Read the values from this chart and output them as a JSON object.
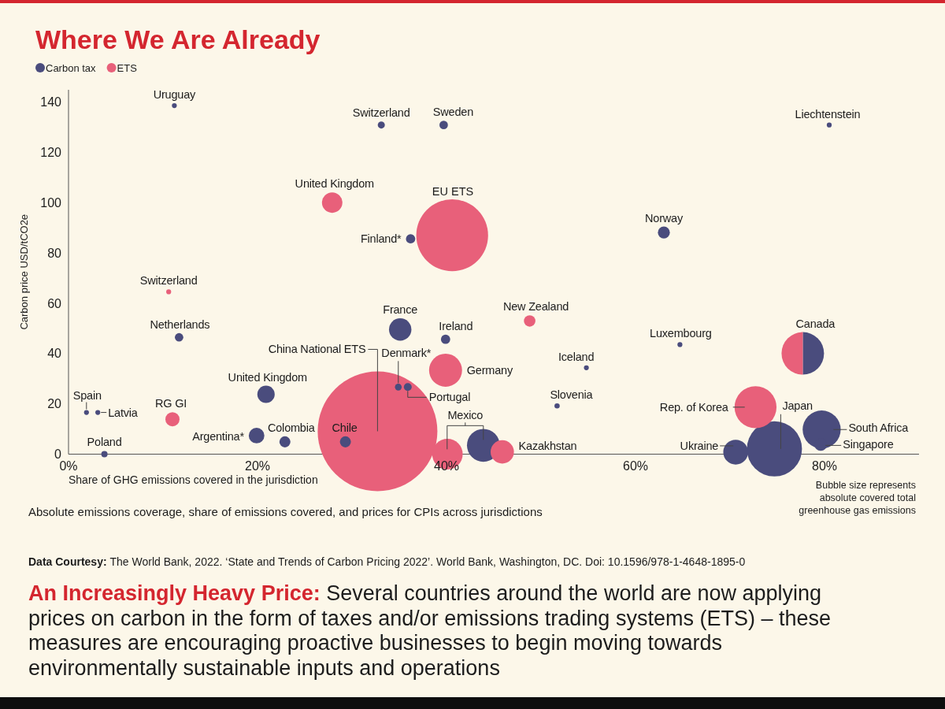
{
  "chart_data": {
    "type": "bubble",
    "title": "Where We Are Already",
    "xlabel": "Share of GHG emissions covered in the jurisdiction",
    "ylabel": "Carbon price USD/tCO2e",
    "legend": "top left",
    "xlim": [
      0,
      90
    ],
    "xticks": [
      {
        "value": 0,
        "label": "0%"
      },
      {
        "value": 20,
        "label": "20%"
      },
      {
        "value": 40,
        "label": "40%"
      },
      {
        "value": 60,
        "label": "60%"
      },
      {
        "value": 80,
        "label": "80%"
      }
    ],
    "ylim": [
      0,
      145
    ],
    "yticks": [
      0,
      20,
      40,
      60,
      80,
      100,
      120,
      140
    ],
    "series": [
      {
        "name": "Carbon tax",
        "color": "#4a4c7d",
        "x": [
          11.2,
          33.1,
          39.7,
          80.5,
          36.2,
          63,
          11.7,
          35.1,
          39.9,
          64.7,
          54.8,
          77.7,
          34.9,
          35.9,
          20.9,
          51.7,
          1.9,
          3.1,
          19.9,
          22.9,
          29.3,
          43.9,
          3.8,
          74.7,
          70.6,
          79.7,
          79.6
        ],
        "values": [
          138.7,
          131,
          131,
          131,
          85.7,
          88.2,
          46.5,
          49.6,
          45.7,
          43.6,
          34.4,
          40.1,
          26.7,
          26.7,
          23.8,
          19.2,
          16.6,
          16.6,
          7.4,
          4.9,
          4.9,
          3.5,
          0,
          2.1,
          0.8,
          9.8,
          3.8
        ],
        "sizes": [
          0.0017,
          0.0035,
          0.005,
          0.0017,
          0.006,
          0.01,
          0.005,
          0.035,
          0.006,
          0.0017,
          0.0017,
          0.126,
          0.0032,
          0.0043,
          0.021,
          0.0019,
          0.0017,
          0.0017,
          0.017,
          0.0085,
          0.0085,
          0.075,
          0.0028,
          0.212,
          0.043,
          0.101,
          0.011
        ]
      },
      {
        "name": "ETS",
        "color": "#e8607a",
        "x": [
          27.9,
          40.6,
          10.6,
          48.8,
          77.7,
          39.9,
          32.7,
          11,
          72.7,
          40.1,
          45.9
        ],
        "values": [
          100.1,
          87.1,
          64.6,
          53,
          40.1,
          33.4,
          9.1,
          13.9,
          18.7,
          0,
          0.9
        ],
        "sizes": [
          0.029,
          0.36,
          0.0017,
          0.0092,
          0.126,
          0.076,
          1,
          0.014,
          0.123,
          0.065,
          0.038
        ]
      }
    ],
    "annotations": [
      {
        "text": "Uruguay",
        "x": 11.2,
        "y": 138.7
      },
      {
        "text": "Switzerland",
        "x": 33.1,
        "y": 131
      },
      {
        "text": "Sweden",
        "x": 39.7,
        "y": 131
      },
      {
        "text": "Liechtenstein",
        "x": 80.5,
        "y": 131
      },
      {
        "text": "United Kingdom",
        "x": 27.9,
        "y": 100.1
      },
      {
        "text": "Finland*",
        "x": 36.2,
        "y": 85.7
      },
      {
        "text": "Norway",
        "x": 63,
        "y": 88.2
      },
      {
        "text": "Switzerland",
        "x": 10.6,
        "y": 64.6
      },
      {
        "text": "Netherlands",
        "x": 11.7,
        "y": 46.5
      },
      {
        "text": "France",
        "x": 35.1,
        "y": 49.6
      },
      {
        "text": "Ireland",
        "x": 39.9,
        "y": 45.7
      },
      {
        "text": "New Zealand",
        "x": 48.8,
        "y": 53
      },
      {
        "text": "Luxembourg",
        "x": 64.7,
        "y": 43.6
      },
      {
        "text": "Iceland",
        "x": 54.8,
        "y": 34.4
      },
      {
        "text": "Canada",
        "x": 77.7,
        "y": 40.1
      },
      {
        "text": "China National ETS",
        "x": 32.7,
        "y": 9.1
      },
      {
        "text": "Denmark*",
        "x": 34.9,
        "y": 26.7
      },
      {
        "text": "Germany",
        "x": 39.9,
        "y": 33.4
      },
      {
        "text": "Portugal",
        "x": 35.9,
        "y": 26.7
      },
      {
        "text": "United Kingdom",
        "x": 20.9,
        "y": 23.8
      },
      {
        "text": "Slovenia",
        "x": 51.7,
        "y": 19.2
      },
      {
        "text": "Spain",
        "x": 1.9,
        "y": 16.6
      },
      {
        "text": "Latvia",
        "x": 3.1,
        "y": 16.6
      },
      {
        "text": "RG GI",
        "x": 11,
        "y": 13.9
      },
      {
        "text": "Argentina*",
        "x": 19.9,
        "y": 7.4
      },
      {
        "text": "Colombia",
        "x": 22.9,
        "y": 4.9
      },
      {
        "text": "Chile",
        "x": 29.3,
        "y": 4.9
      },
      {
        "text": "Poland",
        "x": 3.8,
        "y": 0
      },
      {
        "text": "Mexico",
        "x": 43.9,
        "y": 3.5
      },
      {
        "text": "Kazakhstan",
        "x": 45.9,
        "y": 0.9
      },
      {
        "text": "Rep. of Korea",
        "x": 72.7,
        "y": 18.7
      },
      {
        "text": "Japan",
        "x": 74.7,
        "y": 2.1
      },
      {
        "text": "South Africa",
        "x": 79.7,
        "y": 9.8
      },
      {
        "text": "Singapore",
        "x": 79.6,
        "y": 3.8
      },
      {
        "text": "Ukraine",
        "x": 70.6,
        "y": 0.8
      },
      "Absolute emissions coverage, share of emissions covered, and prices for CPIs across jurisdictions",
      "Bubble size represents absolute covered total greenhouse gas emissions",
      "Data Courtesy: The World Bank, 2022. ‘State and Trends of Carbon Pricing 2022’. World Bank, Washington, DC. Doi: 10.1596/978-1-4648-1895-0",
      "An Increasingly Heavy Price: Several countries around the world are now applying prices on carbon in the form of taxes and/or emissions trading systems (ETS) – these measures are encouraging proactive businesses to begin moving towards environmentally sustainable inputs and operations",
      "EU ETS"
    ]
  }
}
